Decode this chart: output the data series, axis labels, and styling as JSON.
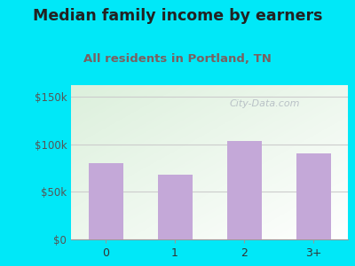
{
  "title": "Median family income by earners",
  "subtitle": "All residents in Portland, TN",
  "categories": [
    "0",
    "1",
    "2",
    "3+"
  ],
  "values": [
    80000,
    68000,
    103000,
    90000
  ],
  "bar_color": "#c4a8d8",
  "title_fontsize": 12.5,
  "subtitle_fontsize": 9.5,
  "subtitle_color": "#7a6060",
  "title_color": "#222222",
  "outer_bg": "#00e8f8",
  "yticks": [
    0,
    50000,
    100000,
    150000
  ],
  "ytick_labels": [
    "$0",
    "$50k",
    "$100k",
    "$150k"
  ],
  "ylim": [
    0,
    162000
  ],
  "grid_color": "#dddddd",
  "watermark": "City-Data.com",
  "watermark_color": "#b0b8c0"
}
